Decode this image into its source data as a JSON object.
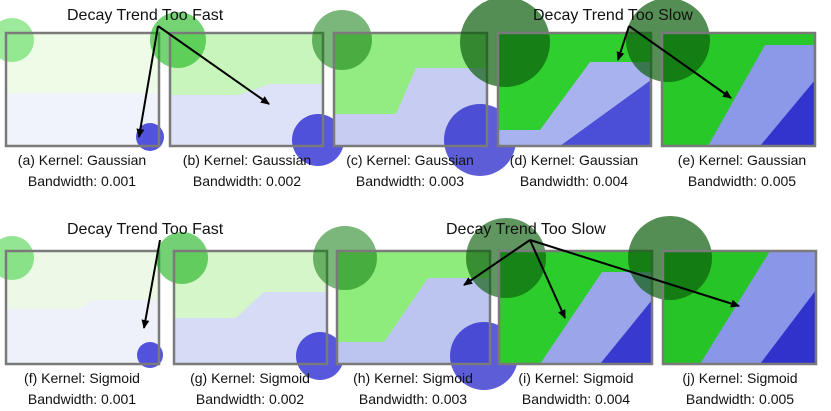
{
  "annotations": {
    "row1_fast": "Decay Trend Too Fast",
    "row1_slow": "Decay Trend Too Slow",
    "row2_fast": "Decay Trend Too Fast",
    "row2_slow": "Decay Trend Too Slow"
  },
  "panels": [
    {
      "label": "(a) Kernel: Gaussian",
      "bandwidth_text": "Bandwidth: 0.001"
    },
    {
      "label": "(b) Kernel: Gaussian",
      "bandwidth_text": "Bandwidth: 0.002"
    },
    {
      "label": "(c) Kernel: Gaussian",
      "bandwidth_text": "Bandwidth: 0.003"
    },
    {
      "label": "(d) Kernel: Gaussian",
      "bandwidth_text": "Bandwidth: 0.004"
    },
    {
      "label": "(e) Kernel: Gaussian",
      "bandwidth_text": "Bandwidth: 0.005"
    },
    {
      "label": "(f) Kernel: Sigmoid",
      "bandwidth_text": "Bandwidth: 0.001"
    },
    {
      "label": "(g) Kernel: Sigmoid",
      "bandwidth_text": "Bandwidth: 0.002"
    },
    {
      "label": "(h) Kernel: Sigmoid",
      "bandwidth_text": "Bandwidth: 0.003"
    },
    {
      "label": "(i) Kernel: Sigmoid",
      "bandwidth_text": "Bandwidth: 0.004"
    },
    {
      "label": "(j) Kernel: Sigmoid",
      "bandwidth_text": "Bandwidth: 0.005"
    }
  ],
  "colors": {
    "green": "#22cc22",
    "dark_green": "#0a5a0a",
    "blue": "#1010c8",
    "light": "#f4f8f4",
    "frame": "#7a7a7a"
  }
}
